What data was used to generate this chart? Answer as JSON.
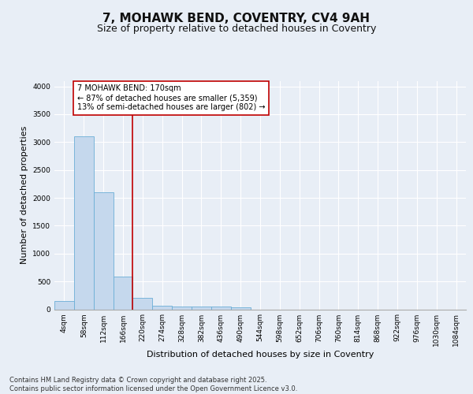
{
  "title": "7, MOHAWK BEND, COVENTRY, CV4 9AH",
  "subtitle": "Size of property relative to detached houses in Coventry",
  "xlabel": "Distribution of detached houses by size in Coventry",
  "ylabel": "Number of detached properties",
  "bar_labels": [
    "4sqm",
    "58sqm",
    "112sqm",
    "166sqm",
    "220sqm",
    "274sqm",
    "328sqm",
    "382sqm",
    "436sqm",
    "490sqm",
    "544sqm",
    "598sqm",
    "652sqm",
    "706sqm",
    "760sqm",
    "814sqm",
    "868sqm",
    "922sqm",
    "976sqm",
    "1030sqm",
    "1084sqm"
  ],
  "bar_values": [
    145,
    3100,
    2100,
    580,
    210,
    70,
    55,
    45,
    45,
    30,
    0,
    0,
    0,
    0,
    0,
    0,
    0,
    0,
    0,
    0,
    0
  ],
  "bar_color": "#c5d8ed",
  "bar_edge_color": "#6baed6",
  "vline_color": "#c00000",
  "annotation_text": "7 MOHAWK BEND: 170sqm\n← 87% of detached houses are smaller (5,359)\n13% of semi-detached houses are larger (802) →",
  "annotation_box_color": "#ffffff",
  "annotation_box_edge_color": "#c00000",
  "ylim": [
    0,
    4100
  ],
  "yticks": [
    0,
    500,
    1000,
    1500,
    2000,
    2500,
    3000,
    3500,
    4000
  ],
  "background_color": "#e8eef6",
  "grid_color": "#ffffff",
  "footer_line1": "Contains HM Land Registry data © Crown copyright and database right 2025.",
  "footer_line2": "Contains public sector information licensed under the Open Government Licence v3.0.",
  "title_fontsize": 11,
  "subtitle_fontsize": 9,
  "label_fontsize": 8,
  "tick_fontsize": 6.5,
  "annot_fontsize": 7,
  "footer_fontsize": 6
}
